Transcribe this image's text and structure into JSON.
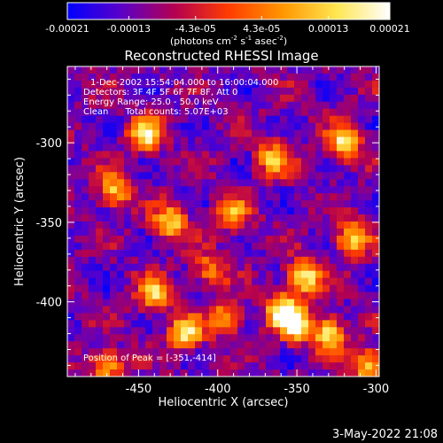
{
  "colorbar": {
    "tick_labels": [
      "-0.00021",
      "-0.00013",
      "-4.3e-05",
      "4.3e-05",
      "0.00013",
      "0.00021"
    ],
    "tick_values": [
      -0.00021,
      -0.00013,
      -4.3e-05,
      4.3e-05,
      0.00013,
      0.00021
    ],
    "range": [
      -0.00021,
      0.00021
    ],
    "units_text": "(photons cm",
    "units_sup1": "-2",
    "units_mid1": " s",
    "units_sup2": "-1",
    "units_mid2": " asec",
    "units_sup3": "-2",
    "units_end": ")",
    "colors": [
      "#0000ff",
      "#5a00c8",
      "#b40050",
      "#ff3c00",
      "#ff9600",
      "#ffe650",
      "#ffffff"
    ]
  },
  "chart_data": {
    "type": "heatmap",
    "title": "Reconstructed RHESSI Image",
    "xlabel": "Heliocentric X (arcsec)",
    "ylabel": "Heliocentric Y (arcsec)",
    "xlim": [
      -495,
      -298
    ],
    "ylim": [
      -447,
      -252
    ],
    "x_ticks": [
      -450,
      -400,
      -350,
      -300
    ],
    "x_tick_labels": [
      "-450",
      "-400",
      "-350",
      "-300"
    ],
    "y_ticks": [
      -300,
      -350,
      -400
    ],
    "y_tick_labels": [
      "-300",
      "-350",
      "-400"
    ],
    "annotations": [
      "1-Dec-2002 15:54:04.000 to 16:00:04.000",
      "Detectors: 3F 4F 5F 6F 7F 8F, Att 0",
      "Energy Range: 25.0 - 50.0 keV",
      "Clean      Total counts: 5.07E+03"
    ],
    "peak_label": "Position of Peak = [-351,-414]",
    "peak": [
      -351,
      -414
    ],
    "bright_sources": [
      {
        "x": -445,
        "y": -295,
        "v": 0.9
      },
      {
        "x": -465,
        "y": -330,
        "v": 0.75
      },
      {
        "x": -430,
        "y": -350,
        "v": 0.8
      },
      {
        "x": -390,
        "y": -345,
        "v": 0.6
      },
      {
        "x": -365,
        "y": -310,
        "v": 0.7
      },
      {
        "x": -320,
        "y": -300,
        "v": 0.85
      },
      {
        "x": -315,
        "y": -360,
        "v": 0.8
      },
      {
        "x": -345,
        "y": -385,
        "v": 0.9
      },
      {
        "x": -360,
        "y": -405,
        "v": 0.75
      },
      {
        "x": -351,
        "y": -414,
        "v": 1.0
      },
      {
        "x": -330,
        "y": -420,
        "v": 0.85
      },
      {
        "x": -305,
        "y": -440,
        "v": 0.8
      },
      {
        "x": -440,
        "y": -395,
        "v": 0.75
      },
      {
        "x": -420,
        "y": -420,
        "v": 0.85
      },
      {
        "x": -470,
        "y": -440,
        "v": 0.7
      },
      {
        "x": -395,
        "y": -410,
        "v": 0.65
      },
      {
        "x": -405,
        "y": -380,
        "v": 0.55
      }
    ]
  },
  "footer": {
    "timestamp": "3-May-2022 21:08"
  }
}
